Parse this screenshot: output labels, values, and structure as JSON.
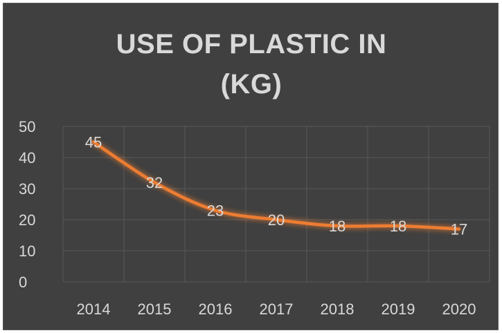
{
  "chart_data": {
    "type": "line",
    "title_lines": [
      "USE OF PLASTIC IN",
      "(KG)"
    ],
    "categories": [
      "2014",
      "2015",
      "2016",
      "2017",
      "2018",
      "2019",
      "2020"
    ],
    "series": [
      {
        "values": [
          45,
          32,
          23,
          20,
          18,
          18,
          17
        ],
        "color": "#ED7D31"
      }
    ],
    "ylim": [
      0,
      50
    ],
    "yticks": [
      0,
      10,
      20,
      30,
      40,
      50
    ],
    "grid": true,
    "data_labels": true,
    "legend": "none",
    "background": "#404040",
    "text_color": "#D9D9D9",
    "grid_color": "#595959"
  }
}
